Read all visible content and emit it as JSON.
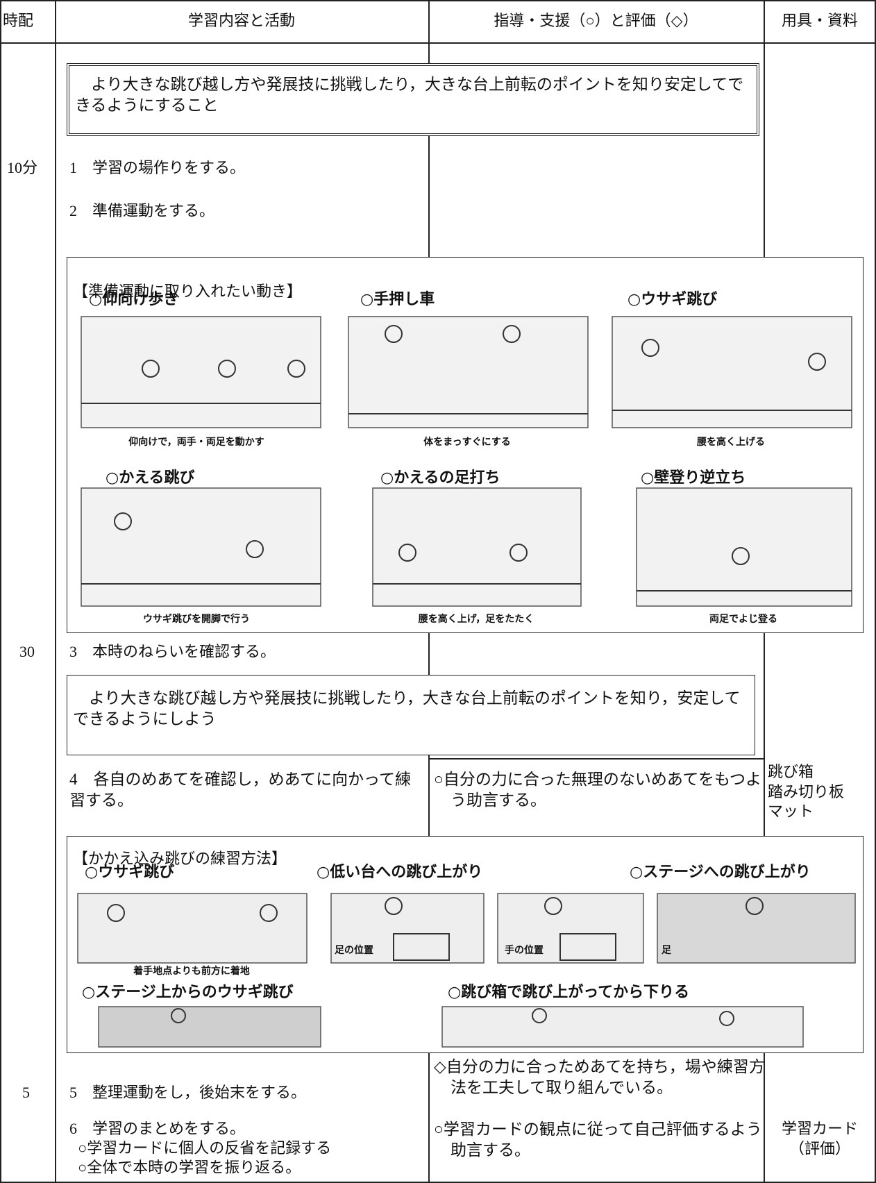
{
  "header": [
    "時配",
    "学習内容と活動",
    "指導・支援（○）と評価（◇）",
    "用具・資料"
  ],
  "goal1": "　より大きな跳び越し方や発展技に挑戦したり，大きな台上前転のポイントを知り安定してできるようにすること",
  "times": [
    "10分",
    "30",
    "5"
  ],
  "items": [
    "1　学習の場作りをする。",
    "2　準備運動をする。",
    "3　本時のねらいを確認する。",
    "4　各自のめあてを確認し，めあてに向かって練習する。",
    "5　整理運動をし，後始末をする。",
    "6　学習のまとめをする。"
  ],
  "item6_sub": [
    "○学習カードに個人の反省を記録する",
    "○全体で本時の学習を振り返る。"
  ],
  "goal2": "　より大きな跳び越し方や発展技に挑戦したり，大きな台上前転のポイントを知り，安定してできるようにしよう",
  "support": [
    "○自分の力に合った無理のないめあてをもつよう助言する。",
    "◇自分の力に合っためあてを持ち，場や練習方法を工夫して取り組んでいる。",
    "○学習カードの観点に従って自己評価するよう助言する。"
  ],
  "tools": [
    "跳び箱",
    "踏み切り板",
    "マット",
    "学習カード",
    "（評価）"
  ],
  "warmup": {
    "title": "【準備運動に取り入れたい動き】",
    "items": [
      {
        "name": "○仰向け歩き",
        "caption": "仰向けで，両手・両足を動かす"
      },
      {
        "name": "○手押し車",
        "caption": "体をまっすぐにする"
      },
      {
        "name": "○ウサギ跳び",
        "caption": "腰を高く上げる"
      },
      {
        "name": "○かえる跳び",
        "caption": "ウサギ跳びを開脚で行う"
      },
      {
        "name": "○かえるの足打ち",
        "caption": "腰を高く上げ，足をたたく"
      },
      {
        "name": "○壁登り逆立ち",
        "caption": "両足でよじ登る"
      }
    ]
  },
  "practice": {
    "title": "【かかえ込み跳びの練習方法】",
    "items": [
      {
        "name": "○ウサギ跳び",
        "caption": "着手地点よりも前方に着地"
      },
      {
        "name": "○低い台への跳び上がり"
      },
      {
        "name": "○ステージへの跳び上がり"
      },
      {
        "name": "○ステージ上からのウサギ跳び"
      },
      {
        "name": "○跳び箱で跳び上がってから下りる"
      }
    ],
    "labels": [
      "足の位置",
      "手の位置",
      "足"
    ]
  }
}
